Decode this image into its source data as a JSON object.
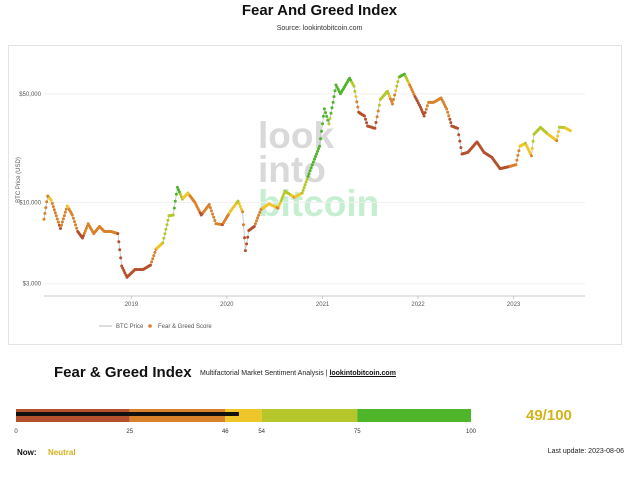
{
  "header": {
    "title": "Fear And Greed Index",
    "subtitle": "Source: lookintobitcoin.com"
  },
  "watermark": {
    "line1": "look",
    "line2": "into",
    "line3": "bitcoin"
  },
  "chart_data": {
    "type": "scatter",
    "title": "",
    "xlabel": "",
    "ylabel": "BTC Price (USD)",
    "y_scale": "log",
    "ylim": [
      2500,
      85000
    ],
    "xlim": [
      "2018-02-01",
      "2023-10-01"
    ],
    "y_ticks": [
      {
        "value": 3000,
        "label": "$3,000"
      },
      {
        "value": 10000,
        "label": "$10,000"
      },
      {
        "value": 50000,
        "label": "$50,000"
      }
    ],
    "x_ticks": [
      {
        "value": "2019-01-01",
        "label": "2019"
      },
      {
        "value": "2020-01-01",
        "label": "2020"
      },
      {
        "value": "2021-01-01",
        "label": "2021"
      },
      {
        "value": "2022-01-01",
        "label": "2022"
      },
      {
        "value": "2023-01-01",
        "label": "2023"
      }
    ],
    "legend": [
      {
        "name": "BTC Price",
        "marker": "line",
        "color": "#cccccc"
      },
      {
        "name": "Fear & Greed Score",
        "marker": "dot",
        "color": "#d9822b"
      }
    ],
    "legend_placement": "bottom-left",
    "series": [
      {
        "name": "BTC Price",
        "x": [
          "2018-02-01",
          "2018-02-15",
          "2018-03-01",
          "2018-03-20",
          "2018-04-05",
          "2018-05-01",
          "2018-05-20",
          "2018-06-10",
          "2018-06-28",
          "2018-07-20",
          "2018-08-10",
          "2018-09-01",
          "2018-09-20",
          "2018-10-15",
          "2018-11-10",
          "2018-11-25",
          "2018-12-15",
          "2019-01-15",
          "2019-02-15",
          "2019-03-15",
          "2019-04-05",
          "2019-05-01",
          "2019-05-25",
          "2019-06-10",
          "2019-06-26",
          "2019-07-15",
          "2019-08-05",
          "2019-09-01",
          "2019-09-25",
          "2019-10-26",
          "2019-11-20",
          "2019-12-15",
          "2020-01-15",
          "2020-02-13",
          "2020-03-01",
          "2020-03-12",
          "2020-03-25",
          "2020-04-15",
          "2020-05-10",
          "2020-06-10",
          "2020-07-15",
          "2020-08-10",
          "2020-09-15",
          "2020-10-15",
          "2020-11-10",
          "2020-12-01",
          "2020-12-20",
          "2021-01-08",
          "2021-01-25",
          "2021-02-10",
          "2021-02-21",
          "2021-03-10",
          "2021-04-14",
          "2021-05-01",
          "2021-05-19",
          "2021-06-10",
          "2021-06-22",
          "2021-07-20",
          "2021-08-10",
          "2021-09-06",
          "2021-09-25",
          "2021-10-20",
          "2021-11-10",
          "2021-11-30",
          "2021-12-20",
          "2022-01-10",
          "2022-01-24",
          "2022-02-10",
          "2022-03-01",
          "2022-03-30",
          "2022-04-20",
          "2022-05-10",
          "2022-06-01",
          "2022-06-18",
          "2022-07-10",
          "2022-08-14",
          "2022-09-10",
          "2022-10-10",
          "2022-11-10",
          "2022-12-15",
          "2023-01-10",
          "2023-01-25",
          "2023-02-15",
          "2023-03-10",
          "2023-03-20",
          "2023-04-14",
          "2023-05-10",
          "2023-06-15",
          "2023-06-25",
          "2023-07-15",
          "2023-08-06"
        ],
        "y": [
          7800,
          11000,
          10300,
          8200,
          6800,
          9500,
          8300,
          6500,
          5900,
          7300,
          6300,
          7000,
          6500,
          6500,
          6300,
          3900,
          3300,
          3700,
          3700,
          3950,
          5000,
          5500,
          8200,
          8300,
          12500,
          10500,
          11500,
          10000,
          8300,
          9700,
          7300,
          7200,
          8800,
          10200,
          8700,
          4900,
          6600,
          7000,
          9000,
          9800,
          9200,
          11800,
          10800,
          11500,
          15300,
          19000,
          23000,
          40000,
          32000,
          44000,
          57000,
          50000,
          63000,
          56000,
          38000,
          36000,
          31000,
          30000,
          46000,
          52000,
          43000,
          64000,
          67000,
          57000,
          48000,
          41000,
          36000,
          44000,
          44000,
          47000,
          40000,
          31000,
          30000,
          20500,
          21000,
          24500,
          21000,
          19500,
          16500,
          17000,
          17500,
          23000,
          24000,
          20000,
          27500,
          30400,
          27700,
          25000,
          30500,
          30300,
          29000
        ]
      },
      {
        "name": "Fear & Greed Score",
        "x": [
          "2018-02-01",
          "2018-02-15",
          "2018-03-01",
          "2018-03-20",
          "2018-04-05",
          "2018-05-01",
          "2018-05-20",
          "2018-06-10",
          "2018-06-28",
          "2018-07-20",
          "2018-08-10",
          "2018-09-01",
          "2018-09-20",
          "2018-10-15",
          "2018-11-10",
          "2018-11-25",
          "2018-12-15",
          "2019-01-15",
          "2019-02-15",
          "2019-03-15",
          "2019-04-05",
          "2019-05-01",
          "2019-05-25",
          "2019-06-10",
          "2019-06-26",
          "2019-07-15",
          "2019-08-05",
          "2019-09-01",
          "2019-09-25",
          "2019-10-26",
          "2019-11-20",
          "2019-12-15",
          "2020-01-15",
          "2020-02-13",
          "2020-03-01",
          "2020-03-12",
          "2020-03-25",
          "2020-04-15",
          "2020-05-10",
          "2020-06-10",
          "2020-07-15",
          "2020-08-10",
          "2020-09-15",
          "2020-10-15",
          "2020-11-10",
          "2020-12-01",
          "2020-12-20",
          "2021-01-08",
          "2021-01-25",
          "2021-02-10",
          "2021-02-21",
          "2021-03-10",
          "2021-04-14",
          "2021-05-01",
          "2021-05-19",
          "2021-06-10",
          "2021-06-22",
          "2021-07-20",
          "2021-08-10",
          "2021-09-06",
          "2021-09-25",
          "2021-10-20",
          "2021-11-10",
          "2021-11-30",
          "2021-12-20",
          "2022-01-10",
          "2022-01-24",
          "2022-02-10",
          "2022-03-01",
          "2022-03-30",
          "2022-04-20",
          "2022-05-10",
          "2022-06-01",
          "2022-06-18",
          "2022-07-10",
          "2022-08-14",
          "2022-09-10",
          "2022-10-10",
          "2022-11-10",
          "2022-12-15",
          "2023-01-10",
          "2023-01-25",
          "2023-02-15",
          "2023-03-10",
          "2023-03-20",
          "2023-04-14",
          "2023-05-10",
          "2023-06-15",
          "2023-06-25",
          "2023-07-15",
          "2023-08-06"
        ],
        "y": [
          7800,
          11000,
          10300,
          8200,
          6800,
          9500,
          8300,
          6500,
          5900,
          7300,
          6300,
          7000,
          6500,
          6500,
          6300,
          3900,
          3300,
          3700,
          3700,
          3950,
          5000,
          5500,
          8200,
          8300,
          12500,
          10500,
          11500,
          10000,
          8300,
          9700,
          7300,
          7200,
          8800,
          10200,
          8700,
          4900,
          6600,
          7000,
          9000,
          9800,
          9200,
          11800,
          10800,
          11500,
          15300,
          19000,
          23000,
          40000,
          32000,
          44000,
          57000,
          50000,
          63000,
          56000,
          38000,
          36000,
          31000,
          30000,
          46000,
          52000,
          43000,
          64000,
          67000,
          57000,
          48000,
          41000,
          36000,
          44000,
          44000,
          47000,
          40000,
          31000,
          30000,
          20500,
          21000,
          24500,
          21000,
          19500,
          16500,
          17000,
          17500,
          23000,
          24000,
          20000,
          27500,
          30400,
          27700,
          25000,
          30500,
          30300,
          29000
        ],
        "score": [
          40,
          45,
          48,
          30,
          22,
          50,
          38,
          25,
          20,
          40,
          30,
          35,
          30,
          32,
          25,
          12,
          10,
          15,
          15,
          25,
          45,
          55,
          75,
          72,
          90,
          55,
          50,
          35,
          22,
          45,
          30,
          25,
          50,
          55,
          45,
          10,
          15,
          22,
          45,
          52,
          45,
          70,
          45,
          55,
          80,
          88,
          90,
          92,
          70,
          85,
          92,
          80,
          80,
          65,
          20,
          25,
          18,
          15,
          65,
          70,
          30,
          75,
          78,
          40,
          25,
          25,
          15,
          40,
          35,
          45,
          30,
          20,
          15,
          10,
          15,
          25,
          20,
          25,
          20,
          25,
          30,
          50,
          55,
          45,
          60,
          60,
          55,
          45,
          58,
          55,
          49
        ]
      }
    ]
  },
  "gauge": {
    "title": "Fear & Greed Index",
    "description": "Multifactorial Market Sentiment Analysis |",
    "site": "lookintobitcoin.com",
    "value": 49,
    "value_display": "49/100",
    "previous_marker": 46,
    "segments": [
      {
        "from": 0,
        "to": 25,
        "color": "#b5502c"
      },
      {
        "from": 25,
        "to": 46,
        "color": "#d9822b"
      },
      {
        "from": 46,
        "to": 54,
        "color": "#efc62a"
      },
      {
        "from": 54,
        "to": 75,
        "color": "#b5c72a"
      },
      {
        "from": 75,
        "to": 100,
        "color": "#4fb52b"
      }
    ],
    "ticks": [
      "0",
      "25",
      "46",
      "54",
      "75",
      "100"
    ],
    "now_label": "Now:",
    "now_value": "Neutral",
    "last_update": "Last update: 2023-08-06"
  },
  "colors": {
    "fear_extreme": "#b5502c",
    "fear": "#d9822b",
    "neutral": "#efc62a",
    "greed": "#b5c72a",
    "greed_extreme": "#4fb52b",
    "value_text": "#d4b21a"
  }
}
